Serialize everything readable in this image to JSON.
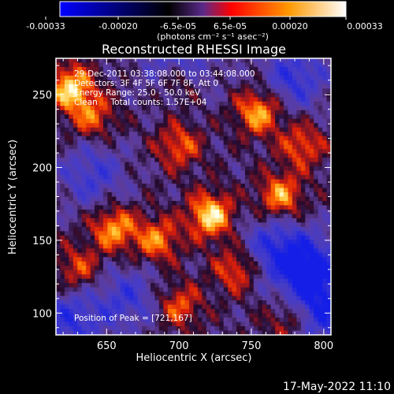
{
  "colorbar": {
    "tick_labels": [
      "-0.00033",
      "-0.00020",
      "-6.5e-05",
      "6.5e-05",
      "0.00020",
      "0.00033"
    ],
    "unit_label": "(photons cm⁻² s⁻¹ asec⁻²)",
    "range": [
      -0.00033,
      0.00033
    ],
    "colors": [
      "#0000ff",
      "#000000",
      "#5a2a8a",
      "#ff0000",
      "#ff9900",
      "#ffffff"
    ]
  },
  "info_lines": [
    "29-Dec-2011 03:38:08.000 to 03:44:08.000",
    "Detectors: 3F 4F 5F 6F 7F 8F, Att 0",
    "Energy Range: 25.0 - 50.0 keV",
    "Clean     Total counts: 1.57E+04"
  ],
  "peak_label": "Position of Peak = [721,167]",
  "timestamp": "17-May-2022 11:10",
  "chart_data": {
    "type": "heatmap",
    "title": "Reconstructed RHESSI Image",
    "xlabel": "Heliocentric X (arcsec)",
    "ylabel": "Heliocentric Y (arcsec)",
    "xlim": [
      615,
      805
    ],
    "ylim": [
      85,
      275
    ],
    "x_ticks": [
      650,
      700,
      750,
      800
    ],
    "y_ticks": [
      100,
      150,
      200,
      250
    ],
    "peak": {
      "x": 721,
      "y": 167
    },
    "grid": false,
    "hot_regions": [
      {
        "x": 625,
        "y": 255,
        "level": 0.95
      },
      {
        "x": 640,
        "y": 235,
        "level": 0.6
      },
      {
        "x": 700,
        "y": 260,
        "level": 0.65
      },
      {
        "x": 700,
        "y": 215,
        "level": 0.6
      },
      {
        "x": 755,
        "y": 238,
        "level": 0.85
      },
      {
        "x": 785,
        "y": 215,
        "level": 0.6
      },
      {
        "x": 722,
        "y": 167,
        "level": 1.0
      },
      {
        "x": 770,
        "y": 180,
        "level": 0.8
      },
      {
        "x": 655,
        "y": 158,
        "level": 0.8
      },
      {
        "x": 685,
        "y": 150,
        "level": 0.7
      },
      {
        "x": 740,
        "y": 130,
        "level": 0.65
      },
      {
        "x": 630,
        "y": 130,
        "level": 0.55
      },
      {
        "x": 700,
        "y": 105,
        "level": 0.6
      },
      {
        "x": 775,
        "y": 95,
        "level": 0.45
      }
    ],
    "cold_regions": [
      {
        "x": 700,
        "y": 270,
        "level": -0.7
      },
      {
        "x": 780,
        "y": 262,
        "level": -0.6
      },
      {
        "x": 790,
        "y": 130,
        "level": -0.9
      },
      {
        "x": 765,
        "y": 145,
        "level": -0.6
      },
      {
        "x": 640,
        "y": 195,
        "level": -0.5
      },
      {
        "x": 665,
        "y": 110,
        "level": -0.5
      },
      {
        "x": 625,
        "y": 95,
        "level": -0.6
      },
      {
        "x": 800,
        "y": 100,
        "level": -0.7
      }
    ]
  }
}
